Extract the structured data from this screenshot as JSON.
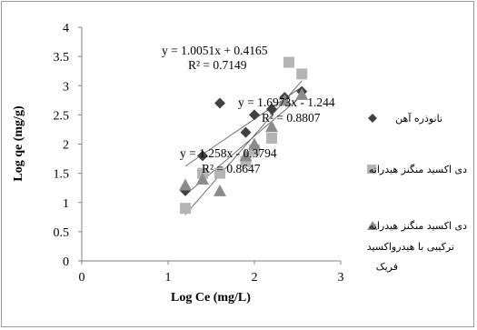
{
  "chart_data": {
    "type": "scatter",
    "title": "",
    "xlabel": "Log Ce (mg/L)",
    "ylabel": "Log qe (mg/g)",
    "xlim": [
      0,
      3
    ],
    "ylim": [
      0,
      4
    ],
    "x_ticks": [
      "0",
      "1",
      "2",
      "3"
    ],
    "y_ticks": [
      "0",
      "0.5",
      "1",
      "1.5",
      "2",
      "2.5",
      "3",
      "3.5",
      "4"
    ],
    "grid": false,
    "legend_position": "right",
    "series": [
      {
        "name": "نانوذره آهن",
        "marker": "diamond",
        "color": "#404040",
        "x": [
          1.2,
          1.4,
          1.6,
          1.9,
          2.0,
          2.2,
          2.35,
          2.55
        ],
        "y": [
          1.2,
          1.8,
          2.7,
          2.2,
          2.5,
          2.6,
          2.8,
          2.9
        ],
        "trendline": {
          "slope": 1.6973,
          "intercept": -1.244,
          "equation": "y = 1.6973x - 1.244",
          "r2": "R² = 0.8807"
        }
      },
      {
        "name": "دی اکسید منگنز هیدراته",
        "marker": "square",
        "color": "#b4b4b4",
        "x": [
          1.2,
          1.4,
          1.6,
          1.9,
          2.0,
          2.2,
          2.4,
          2.55
        ],
        "y": [
          0.9,
          1.5,
          1.5,
          1.7,
          1.9,
          2.1,
          3.4,
          3.2
        ],
        "trendline": {
          "slope": 1.0051,
          "intercept": 0.4165,
          "equation": "y = 1.0051x + 0.4165",
          "r2": "R² = 0.7149"
        }
      },
      {
        "name": "دی اکسید منگنز هیدراته ترکیبی با هیدرواکسید فریک",
        "marker": "triangle",
        "color": "#8c8c8c",
        "x": [
          1.2,
          1.4,
          1.6,
          1.9,
          2.0,
          2.2,
          2.35,
          2.55
        ],
        "y": [
          1.3,
          1.4,
          1.2,
          1.8,
          2.0,
          2.3,
          2.75,
          2.85
        ],
        "trendline": {
          "slope": 1.258,
          "intercept": -0.3794,
          "equation": "y = 1.258x - 0.3794",
          "r2": "R² = 0.8647"
        }
      }
    ],
    "annotations": [
      {
        "series": 1,
        "text": "y = 1.0051x + 0.4165"
      },
      {
        "series": 1,
        "text": "R² = 0.7149"
      },
      {
        "series": 0,
        "text": "y = 1.6973x - 1.244"
      },
      {
        "series": 0,
        "text": "R² = 0.8807"
      },
      {
        "series": 2,
        "text": "y = 1.258x - 0.3794"
      },
      {
        "series": 2,
        "text": "R² = 0.8647"
      }
    ],
    "legend": {
      "items": [
        {
          "lines": [
            "نانوذره آهن"
          ]
        },
        {
          "lines": [
            "دی اکسید منگنز هیدراته"
          ]
        },
        {
          "lines": [
            "دی اکسید منگنز هیدراته",
            "ترکیبی با هیدرواکسید",
            "فریک"
          ]
        }
      ]
    }
  }
}
